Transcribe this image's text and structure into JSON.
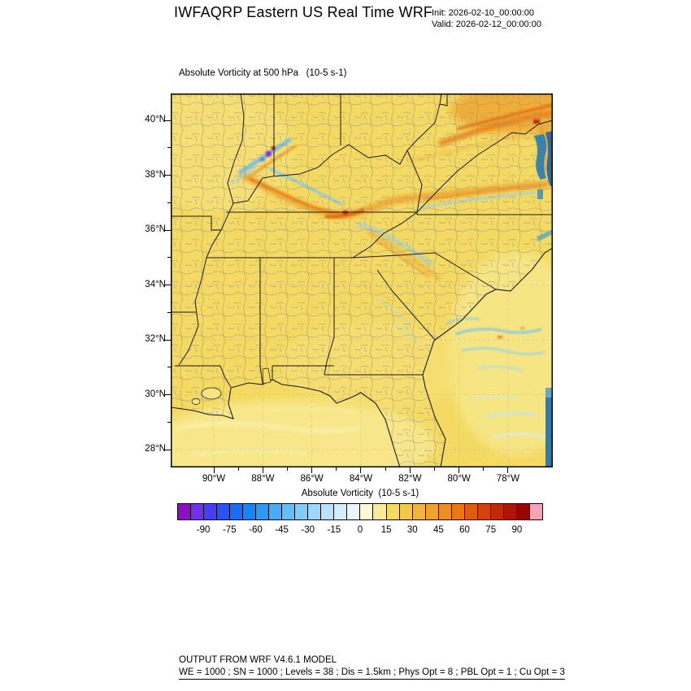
{
  "header": {
    "title": "IWFAQRP Eastern US Real Time WRF",
    "init_label": "Init: 2026-02-10_00:00:00",
    "valid_label": "Valid: 2026-02-12_00:00:00"
  },
  "map": {
    "subtitle": "Absolute Vorticity at 500 hPa   (10-5 s-1)",
    "lat_ticks": [
      "40°N",
      "38°N",
      "36°N",
      "34°N",
      "32°N",
      "30°N",
      "28°N"
    ],
    "lon_ticks": [
      "90°W",
      "88°W",
      "86°W",
      "84°W",
      "82°W",
      "80°W",
      "78°W"
    ]
  },
  "colorbar": {
    "label": "Absolute Vorticity  (10-5 s-1)",
    "tick_labels": [
      "-90",
      "-75",
      "-60",
      "-45",
      "-30",
      "-15",
      "0",
      "15",
      "30",
      "45",
      "60",
      "75",
      "90"
    ],
    "colors": [
      "#8a10c0",
      "#7031e8",
      "#4a3cf0",
      "#2a52f4",
      "#1a6cf8",
      "#1484f8",
      "#2c9af8",
      "#48acf8",
      "#64bcf8",
      "#80ccfa",
      "#9cd8fa",
      "#b8e4fb",
      "#d2eefc",
      "#e9f6fc",
      "#fdf9d4",
      "#f9ec96",
      "#f4da62",
      "#f2c94c",
      "#f0b63c",
      "#eea32e",
      "#ec8f22",
      "#e87816",
      "#e25c10",
      "#d6400a",
      "#c62806",
      "#b01404",
      "#960502",
      "#f2a4b8"
    ]
  },
  "footer": {
    "line1": "OUTPUT FROM WRF V4.6.1 MODEL",
    "line2": "WE = 1000 ; SN = 1000 ; Levels = 38 ; Dis = 1.5km ; Phys Opt = 8 ; PBL Opt = 1 ; Cu Opt = 3"
  },
  "chart_data": {
    "type": "heatmap",
    "title": "Absolute Vorticity at 500 hPa (10-5 s-1)",
    "field": "Absolute Vorticity",
    "units": "10-5 s-1",
    "level_hPa": 500,
    "model_run": {
      "model": "WRF V4.6.1",
      "init": "2026-02-10_00:00:00",
      "valid": "2026-02-12_00:00:00"
    },
    "x_axis": {
      "tick_labels": [
        "90°W",
        "88°W",
        "86°W",
        "84°W",
        "82°W",
        "80°W",
        "78°W"
      ],
      "lon_range_deg": [
        -91.8,
        -76.2
      ]
    },
    "y_axis": {
      "tick_labels": [
        "40°N",
        "38°N",
        "36°N",
        "34°N",
        "32°N",
        "30°N",
        "28°N"
      ],
      "lat_range_deg": [
        27.3,
        41.0
      ]
    },
    "colorbar": {
      "label": "Absolute Vorticity  (10-5 s-1)",
      "tick_values": [
        -90,
        -75,
        -60,
        -45,
        -30,
        -15,
        0,
        15,
        30,
        45,
        60,
        75,
        90
      ],
      "value_range": [
        -105,
        105
      ],
      "n_cells": 28
    },
    "field_summary": {
      "background_value_range": [
        5,
        20
      ],
      "notable_features": [
        {
          "region": "wavy band near 37N from 89W to 77W",
          "description": "elongated positive vorticity maximum with blue (negative) fringes",
          "approx_max": 60
        },
        {
          "region": "northeast corner near 40-41N 77-78W",
          "description": "broad strong positive vorticity area with embedded red maxima",
          "approx_max": 90
        },
        {
          "region": "southern Illinois / southeast Missouri near 38N 88-89W",
          "description": "compact couplet of extreme positive and negative vorticity streaks",
          "approx_range": [
            -90,
            90
          ]
        },
        {
          "region": "Atlantic offshore 31-33N 78-80W",
          "description": "thin filaments of weak negative vorticity",
          "approx_min": -30
        },
        {
          "region": "eastern domain edge near 28-31N",
          "description": "narrow strip of strongly negative values (boundary artifact)",
          "approx_min": -60
        }
      ]
    }
  }
}
